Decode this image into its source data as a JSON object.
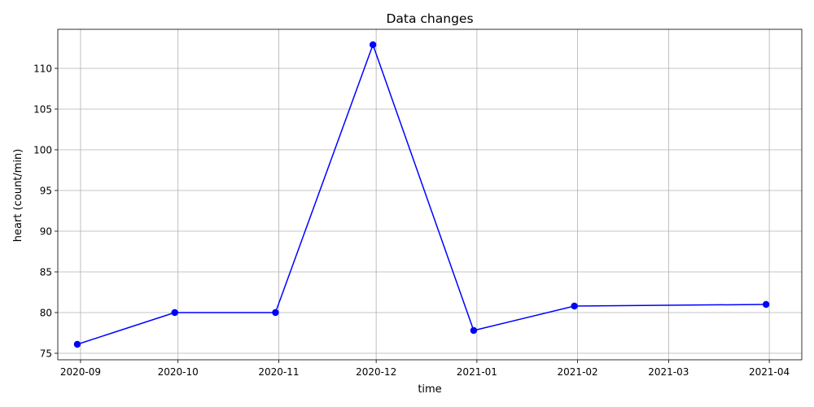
{
  "chart_data": {
    "type": "line",
    "title": "Data changes",
    "xlabel": "time",
    "ylabel": "heart (count/min)",
    "x_scale": "date",
    "xlim": [
      "2020-08-25",
      "2021-04-11"
    ],
    "ylim": [
      74.2,
      114.8
    ],
    "x_ticks": [
      {
        "date": "2020-09-01",
        "label": "2020-09"
      },
      {
        "date": "2020-10-01",
        "label": "2020-10"
      },
      {
        "date": "2020-11-01",
        "label": "2020-11"
      },
      {
        "date": "2020-12-01",
        "label": "2020-12"
      },
      {
        "date": "2021-01-01",
        "label": "2021-01"
      },
      {
        "date": "2021-02-01",
        "label": "2021-02"
      },
      {
        "date": "2021-03-01",
        "label": "2021-03"
      },
      {
        "date": "2021-04-01",
        "label": "2021-04"
      }
    ],
    "y_ticks": [
      75,
      80,
      85,
      90,
      95,
      100,
      105,
      110
    ],
    "grid": true,
    "series": [
      {
        "color": "#0000ff",
        "marker": "circle",
        "points": [
          {
            "x": "2020-08-31",
            "y": 76.1
          },
          {
            "x": "2020-09-30",
            "y": 80.0
          },
          {
            "x": "2020-10-31",
            "y": 80.0
          },
          {
            "x": "2020-11-30",
            "y": 112.9
          },
          {
            "x": "2020-12-31",
            "y": 77.8
          },
          {
            "x": "2021-01-31",
            "y": 80.8
          },
          {
            "x": "2021-03-31",
            "y": 81.0
          }
        ]
      }
    ]
  }
}
